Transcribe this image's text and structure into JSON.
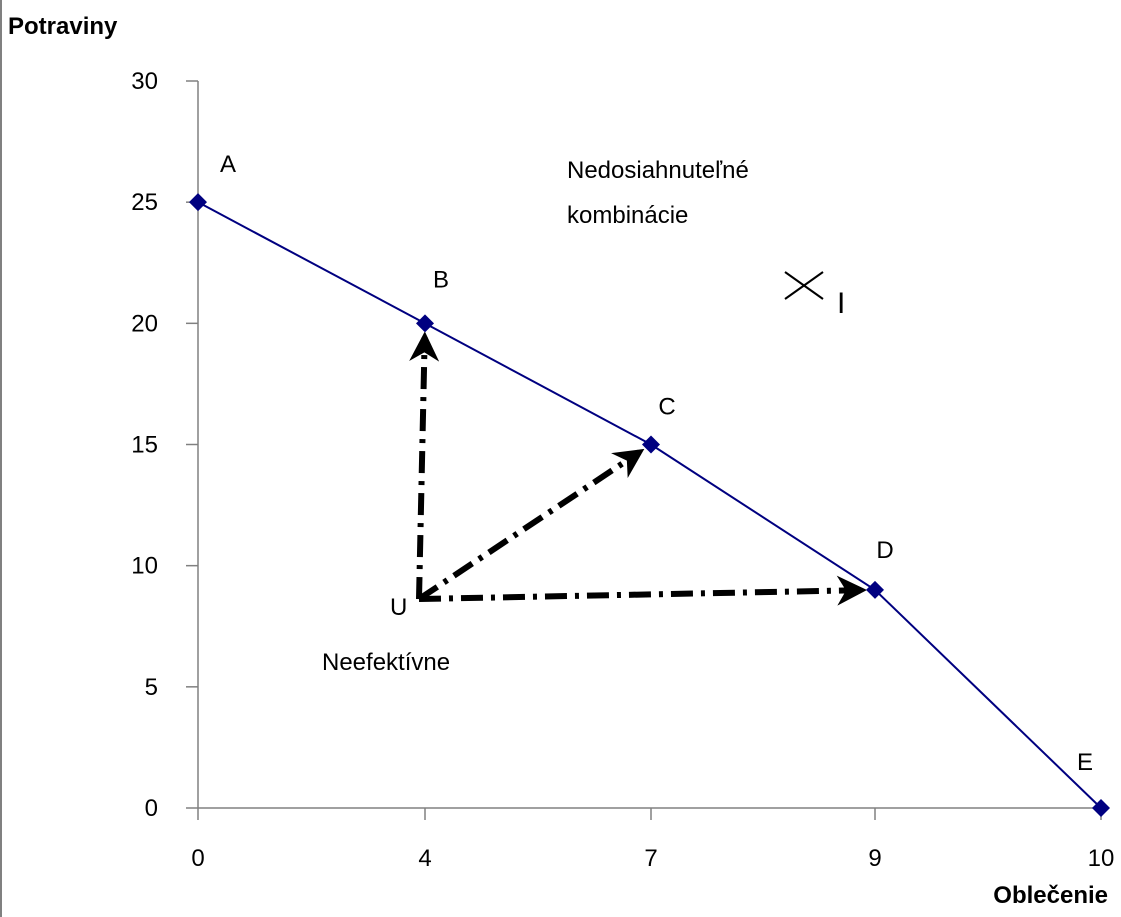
{
  "chart_data": {
    "type": "line",
    "ylabel": "Potraviny",
    "xlabel": "Oblečenie",
    "x_categories": [
      "0",
      "4",
      "7",
      "9",
      "10"
    ],
    "y_ticks": [
      "0",
      "5",
      "10",
      "15",
      "20",
      "25",
      "30"
    ],
    "ylim": [
      0,
      30
    ],
    "grid": false,
    "series": [
      {
        "color": "#000080",
        "points": [
          {
            "label": "A",
            "x": "0",
            "y": 25
          },
          {
            "label": "B",
            "x": "4",
            "y": 20
          },
          {
            "label": "C",
            "x": "7",
            "y": 15
          },
          {
            "label": "D",
            "x": "9",
            "y": 9
          },
          {
            "label": "E",
            "x": "10",
            "y": 0
          }
        ]
      }
    ],
    "annotations": {
      "unattainable_line1": "Nedosiahnuteľné",
      "unattainable_line2": "kombinácie",
      "unattainable_point": "I",
      "inefficient_point": "U",
      "inefficient_label": "Neefektívne"
    },
    "inefficient_point_value": {
      "x": "4",
      "y": 8.5
    },
    "arrows_from_U_to": [
      "B",
      "C",
      "D"
    ],
    "colors": {
      "line": "#000080",
      "marker": "#000080",
      "arrows": "#000000"
    }
  }
}
